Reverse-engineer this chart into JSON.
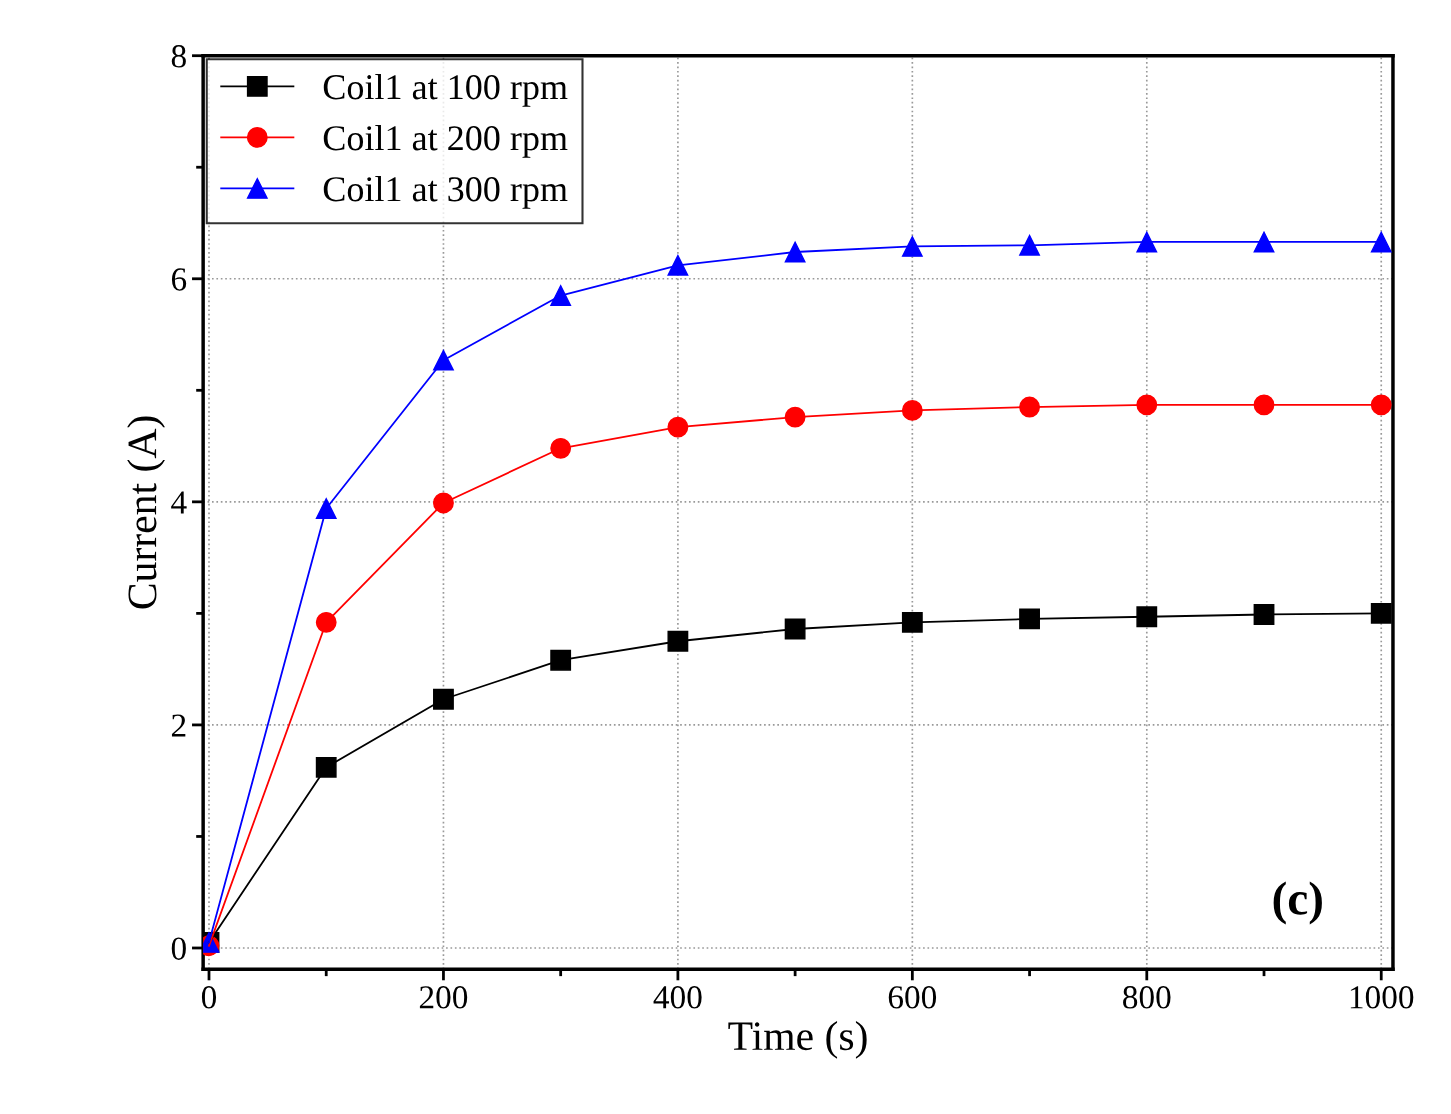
{
  "chart_data": {
    "type": "line",
    "xlabel": "Time (s)",
    "ylabel": "Current (A)",
    "x": [
      0,
      100,
      200,
      300,
      400,
      500,
      600,
      700,
      800,
      900,
      1000
    ],
    "series": [
      {
        "name": "Coil1 at 100 rpm",
        "color": "#000000",
        "marker": "square",
        "values": [
          0.05,
          1.62,
          2.23,
          2.58,
          2.75,
          2.86,
          2.92,
          2.95,
          2.97,
          2.99,
          3.0
        ]
      },
      {
        "name": "Coil1 at 200 rpm",
        "color": "#ff0000",
        "marker": "circle",
        "values": [
          0.02,
          2.92,
          3.99,
          4.48,
          4.67,
          4.76,
          4.82,
          4.85,
          4.87,
          4.87,
          4.87
        ]
      },
      {
        "name": "Coil1 at 300 rpm",
        "color": "#0000ff",
        "marker": "triangle",
        "values": [
          0.05,
          3.94,
          5.27,
          5.85,
          6.12,
          6.24,
          6.29,
          6.3,
          6.33,
          6.33,
          6.33
        ]
      }
    ],
    "xlim": [
      -5,
      1010
    ],
    "ylim": [
      -0.19,
      8
    ],
    "xticks": [
      0,
      200,
      400,
      600,
      800,
      1000
    ],
    "yticks": [
      0,
      2,
      4,
      6,
      8
    ],
    "grid": true,
    "legend": "top left",
    "line_style": "solid",
    "annotations": [
      "(c)"
    ]
  }
}
